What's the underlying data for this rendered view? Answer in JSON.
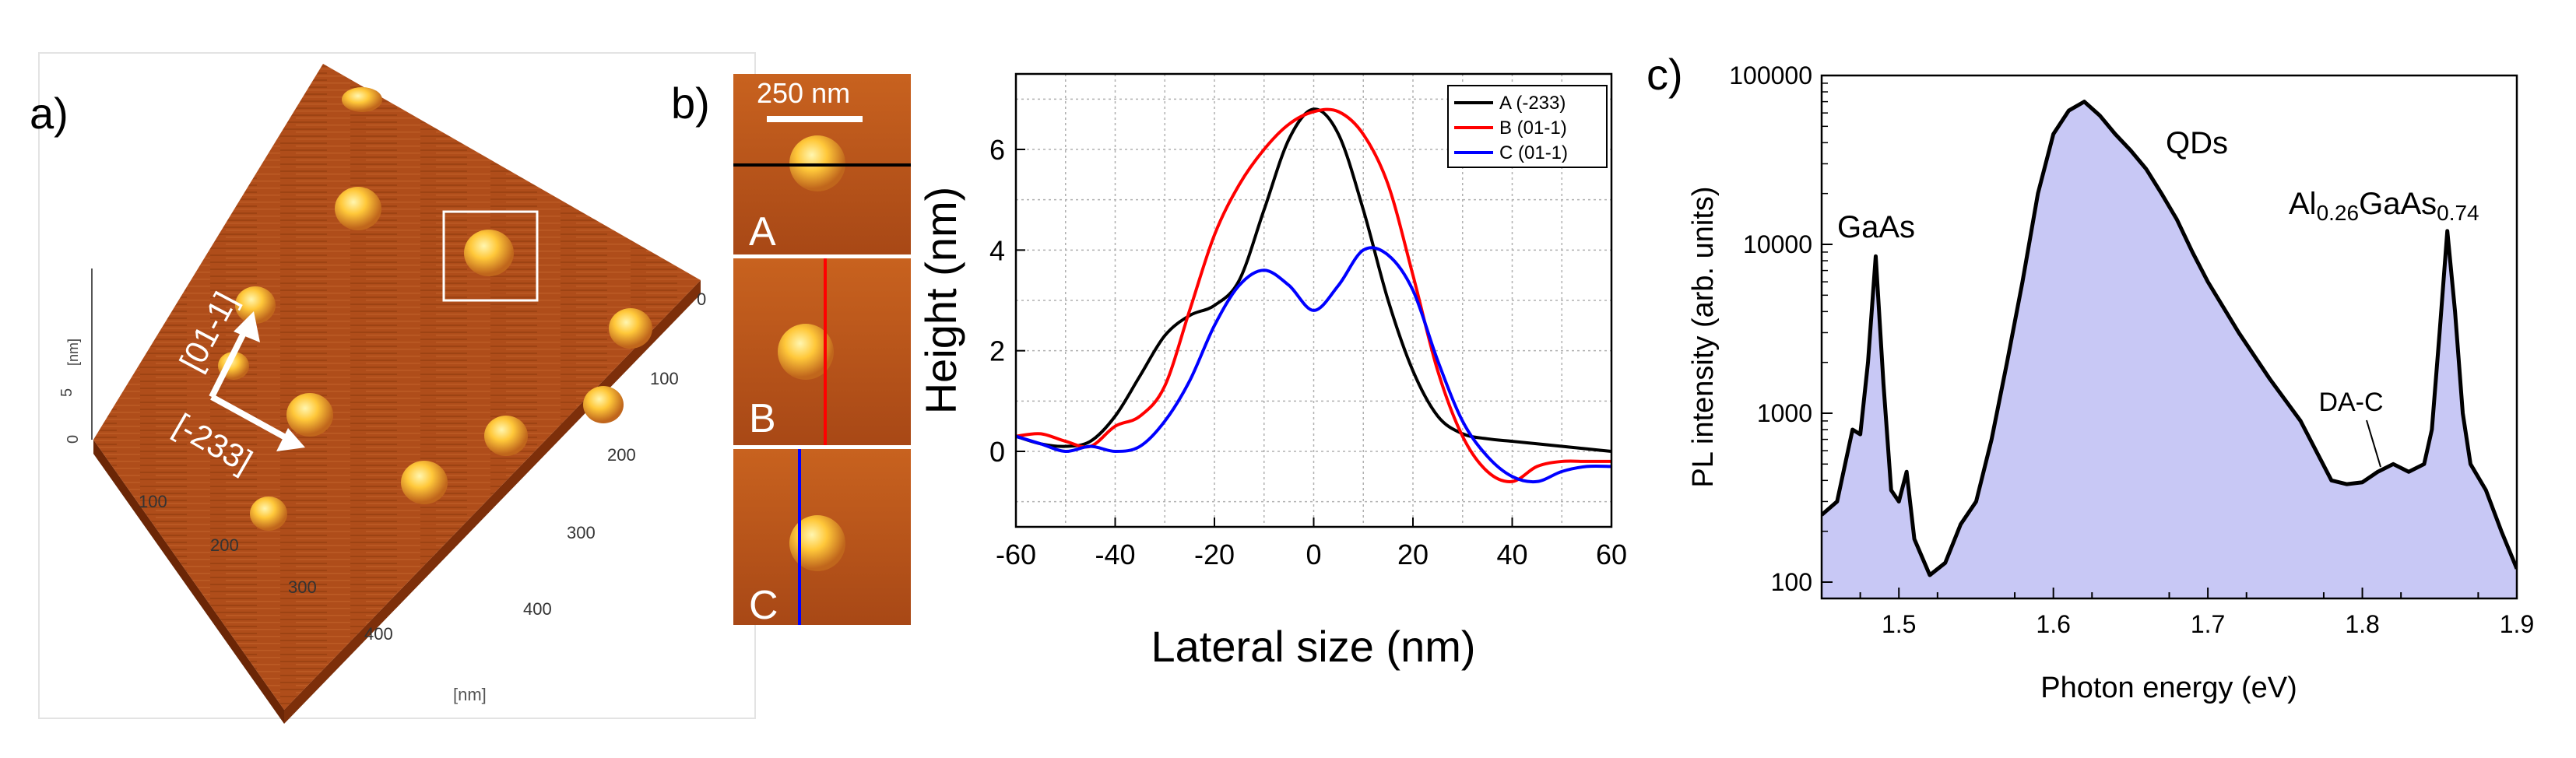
{
  "panel_labels": {
    "a": "a)",
    "b": "b)",
    "c": "c)"
  },
  "afm": {
    "direction_labels": [
      "[01-1]",
      "[-233]"
    ],
    "z_unit": "[nm]",
    "z_tick": "5",
    "z_zero": "0",
    "xy_unit": "[nm]",
    "left_ticks": [
      "100",
      "200",
      "300",
      "400"
    ],
    "right_ticks": [
      "0",
      "100",
      "200",
      "300",
      "400"
    ],
    "colors": {
      "surface": "#b8541c",
      "surface_dark": "#7a2c08",
      "dot": "#ffc83a",
      "box": "#ffffff"
    }
  },
  "insets": {
    "scale_bar": "250 nm",
    "labels": [
      "A",
      "B",
      "C"
    ],
    "line_colors": [
      "#000000",
      "#ff0000",
      "#0000ff"
    ]
  },
  "chart_data": [
    {
      "type": "line",
      "xlabel": "Lateral size (nm)",
      "ylabel": "Height (nm)",
      "xlim": [
        -60,
        60
      ],
      "ylim": [
        -1.5,
        7.5
      ],
      "xticks": [
        "-60",
        "-40",
        "-20",
        "0",
        "20",
        "40",
        "60"
      ],
      "yticks": [
        "0",
        "2",
        "4",
        "6"
      ],
      "grid": true,
      "legend_position": "top-right",
      "series": [
        {
          "name": "A (-233)",
          "color": "#000000",
          "x": [
            -60,
            -55,
            -50,
            -45,
            -40,
            -35,
            -30,
            -25,
            -20,
            -15,
            -10,
            -5,
            0,
            5,
            10,
            15,
            20,
            25,
            30,
            35,
            40,
            45,
            50,
            55,
            60
          ],
          "y": [
            0.3,
            0.15,
            0.1,
            0.2,
            0.7,
            1.5,
            2.3,
            2.7,
            2.9,
            3.4,
            4.8,
            6.2,
            6.8,
            6.3,
            4.8,
            3.0,
            1.6,
            0.7,
            0.35,
            0.25,
            0.2,
            0.15,
            0.1,
            0.05,
            0.0
          ]
        },
        {
          "name": "B (01-1)",
          "color": "#ff0000",
          "x": [
            -60,
            -55,
            -50,
            -45,
            -40,
            -35,
            -30,
            -25,
            -20,
            -15,
            -10,
            -5,
            0,
            5,
            10,
            15,
            20,
            25,
            30,
            35,
            40,
            45,
            50,
            55,
            60
          ],
          "y": [
            0.3,
            0.35,
            0.2,
            0.1,
            0.5,
            0.7,
            1.3,
            2.8,
            4.3,
            5.3,
            6.0,
            6.5,
            6.75,
            6.75,
            6.3,
            5.3,
            3.5,
            1.6,
            0.3,
            -0.4,
            -0.6,
            -0.3,
            -0.2,
            -0.2,
            -0.2
          ]
        },
        {
          "name": "C (01-1)",
          "color": "#0000ff",
          "x": [
            -60,
            -55,
            -50,
            -45,
            -40,
            -35,
            -30,
            -25,
            -20,
            -15,
            -10,
            -5,
            0,
            5,
            10,
            15,
            20,
            25,
            30,
            35,
            40,
            45,
            50,
            55,
            60
          ],
          "y": [
            0.3,
            0.15,
            0.0,
            0.1,
            0.0,
            0.1,
            0.6,
            1.4,
            2.5,
            3.3,
            3.6,
            3.3,
            2.8,
            3.3,
            4.0,
            3.9,
            3.2,
            1.8,
            0.6,
            -0.1,
            -0.5,
            -0.6,
            -0.4,
            -0.3,
            -0.3
          ]
        }
      ]
    },
    {
      "type": "area",
      "xlabel": "Photon energy (eV)",
      "ylabel": "PL intensity (arb. units)",
      "xlim": [
        1.45,
        1.9
      ],
      "yscale": "log",
      "ylim": [
        80,
        100000
      ],
      "xticks": [
        "1.5",
        "1.6",
        "1.7",
        "1.8",
        "1.9"
      ],
      "yticks": [
        "100",
        "1000",
        "10000",
        "100000"
      ],
      "fill_color": "#c8c8f5",
      "line_color": "#000000",
      "x": [
        1.45,
        1.46,
        1.47,
        1.475,
        1.48,
        1.485,
        1.49,
        1.495,
        1.5,
        1.505,
        1.51,
        1.52,
        1.53,
        1.54,
        1.55,
        1.56,
        1.57,
        1.58,
        1.59,
        1.6,
        1.61,
        1.62,
        1.63,
        1.64,
        1.65,
        1.66,
        1.67,
        1.68,
        1.69,
        1.7,
        1.72,
        1.74,
        1.76,
        1.77,
        1.78,
        1.79,
        1.8,
        1.81,
        1.82,
        1.83,
        1.84,
        1.845,
        1.85,
        1.855,
        1.86,
        1.865,
        1.87,
        1.88,
        1.89,
        1.9
      ],
      "y": [
        250,
        300,
        800,
        750,
        2000,
        8500,
        1500,
        350,
        300,
        450,
        180,
        110,
        130,
        220,
        300,
        700,
        2000,
        6000,
        20000,
        45000,
        62000,
        70000,
        58000,
        45000,
        36000,
        28000,
        20000,
        14000,
        9000,
        6000,
        3000,
        1600,
        900,
        600,
        400,
        380,
        390,
        450,
        500,
        450,
        500,
        800,
        3000,
        12000,
        4000,
        1000,
        500,
        350,
        200,
        120
      ],
      "annotations": [
        "GaAs",
        "QDs",
        "DA-C"
      ],
      "annotation_rich": {
        "prefix": "Al",
        "sub1": "0.26",
        "middle": "GaAs",
        "sub2": "0.74"
      }
    }
  ]
}
